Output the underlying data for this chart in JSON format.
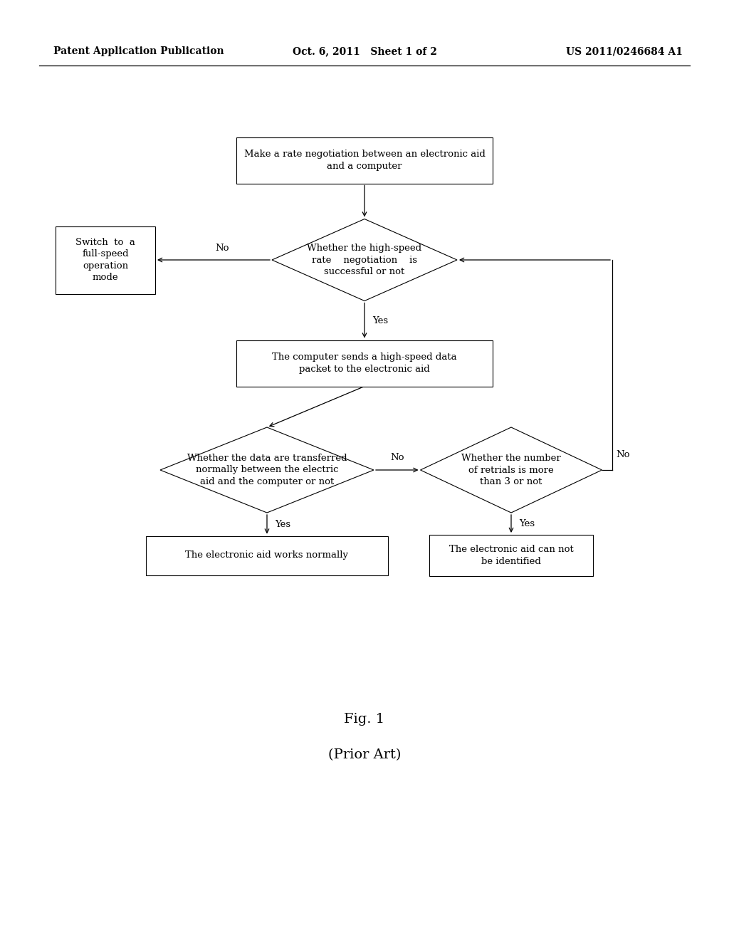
{
  "background_color": "#ffffff",
  "header_left": "Patent Application Publication",
  "header_center": "Oct. 6, 2011   Sheet 1 of 2",
  "header_right": "US 2011/0246684 A1",
  "footer_fig": "Fig. 1",
  "footer_caption": "(Prior Art)"
}
